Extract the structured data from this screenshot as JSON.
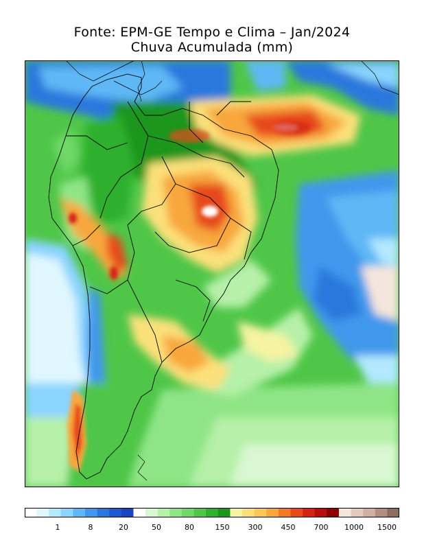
{
  "title": {
    "line1": "Fonte: EPM-GE Tempo e Clima – Jan/2024",
    "line2": "Chuva Acumulada (mm)"
  },
  "map": {
    "region": "South America",
    "variable": "accumulated precipitation",
    "units": "mm"
  },
  "legend": {
    "colors": [
      "#ffffff",
      "#e0f7ff",
      "#b3e8ff",
      "#8ad4ff",
      "#5fb8f5",
      "#3f98ec",
      "#2a78dd",
      "#1f5bcf",
      "#1d44bf",
      "#ffffff",
      "#d9f7d2",
      "#b6f0a9",
      "#8fe586",
      "#6fd867",
      "#4fc648",
      "#2fb02f",
      "#1b961b",
      "#f6f3a3",
      "#fbe07a",
      "#fcc557",
      "#f8a73c",
      "#f27a26",
      "#e7491b",
      "#d42314",
      "#b50f0d",
      "#8f0000",
      "#f4e6dc",
      "#e2cbbd",
      "#cfb0a1",
      "#b08f80",
      "#8c6e60"
    ],
    "tick_labels": [
      "1",
      "8",
      "20",
      "50",
      "80",
      "150",
      "300",
      "450",
      "700",
      "1000",
      "1500"
    ]
  }
}
